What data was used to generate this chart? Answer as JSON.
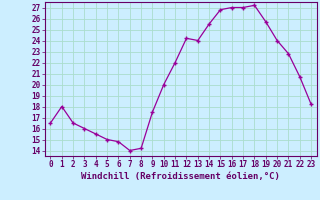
{
  "x": [
    0,
    1,
    2,
    3,
    4,
    5,
    6,
    7,
    8,
    9,
    10,
    11,
    12,
    13,
    14,
    15,
    16,
    17,
    18,
    19,
    20,
    21,
    22,
    23
  ],
  "y": [
    16.5,
    18.0,
    16.5,
    16.0,
    15.5,
    15.0,
    14.8,
    14.0,
    14.2,
    17.5,
    20.0,
    22.0,
    24.2,
    24.0,
    25.5,
    26.8,
    27.0,
    27.0,
    27.2,
    25.7,
    24.0,
    22.8,
    20.7,
    18.2
  ],
  "line_color": "#990099",
  "marker": "+",
  "markersize": 3.5,
  "linewidth": 0.9,
  "xlabel": "Windchill (Refroidissement éolien,°C)",
  "xlabel_fontsize": 6.5,
  "xlim": [
    -0.5,
    23.5
  ],
  "ylim": [
    13.5,
    27.5
  ],
  "yticks": [
    14,
    15,
    16,
    17,
    18,
    19,
    20,
    21,
    22,
    23,
    24,
    25,
    26,
    27
  ],
  "xticks": [
    0,
    1,
    2,
    3,
    4,
    5,
    6,
    7,
    8,
    9,
    10,
    11,
    12,
    13,
    14,
    15,
    16,
    17,
    18,
    19,
    20,
    21,
    22,
    23
  ],
  "bg_color": "#cceeff",
  "grid_color": "#aaddcc",
  "tick_fontsize": 5.5,
  "tick_color": "#660066",
  "spine_color": "#660066"
}
